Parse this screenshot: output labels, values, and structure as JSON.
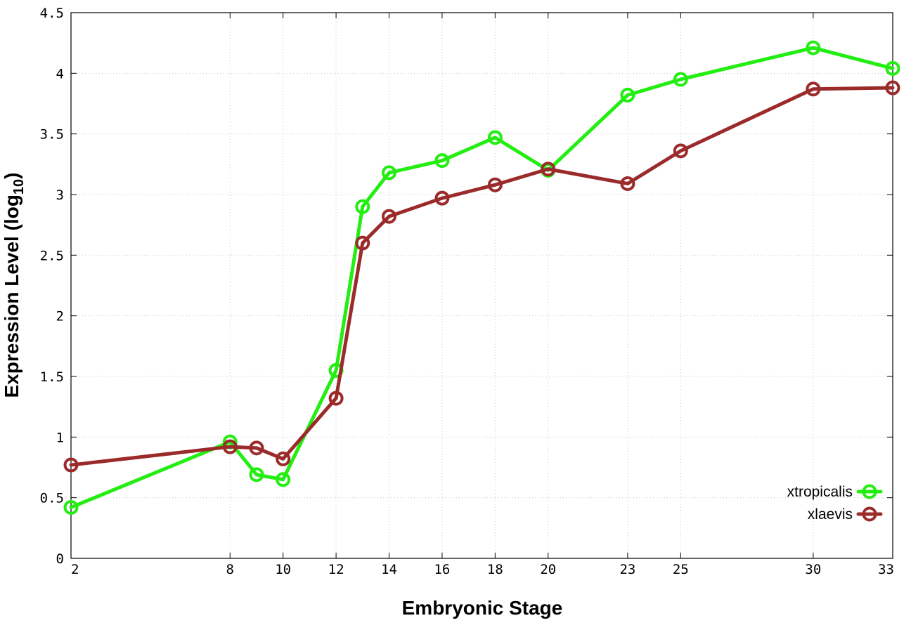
{
  "chart_data": {
    "type": "line",
    "title": "",
    "xlabel": "Embryonic Stage",
    "ylabel_main": "Expression Level (log",
    "ylabel_sub": "10",
    "ylabel_close": ")",
    "xlim": [
      2,
      33
    ],
    "ylim": [
      0,
      4.5
    ],
    "x_ticks": [
      2,
      8,
      10,
      12,
      14,
      16,
      18,
      20,
      23,
      25,
      30,
      33
    ],
    "y_ticks": [
      0,
      0.5,
      1,
      1.5,
      2,
      2.5,
      3,
      3.5,
      4,
      4.5
    ],
    "y_tick_labels": [
      "0",
      "0.5",
      "1",
      "1.5",
      "2",
      "2.5",
      "3",
      "3.5",
      "4",
      "4.5"
    ],
    "x": [
      2,
      8,
      9,
      10,
      12,
      13,
      14,
      16,
      18,
      20,
      23,
      25,
      30,
      33
    ],
    "grid": true,
    "legend_position": "bottom-right",
    "series": [
      {
        "name": "xtropicalis",
        "color": "#22ee11",
        "values": [
          0.42,
          0.96,
          0.69,
          0.65,
          1.55,
          2.9,
          3.18,
          3.28,
          3.47,
          3.2,
          3.82,
          3.95,
          4.21,
          4.04
        ]
      },
      {
        "name": "xlaevis",
        "color": "#9b2b2b",
        "values": [
          0.77,
          0.92,
          0.91,
          0.82,
          1.32,
          2.6,
          2.82,
          2.97,
          3.08,
          3.21,
          3.09,
          3.36,
          3.87,
          3.88
        ]
      }
    ]
  }
}
